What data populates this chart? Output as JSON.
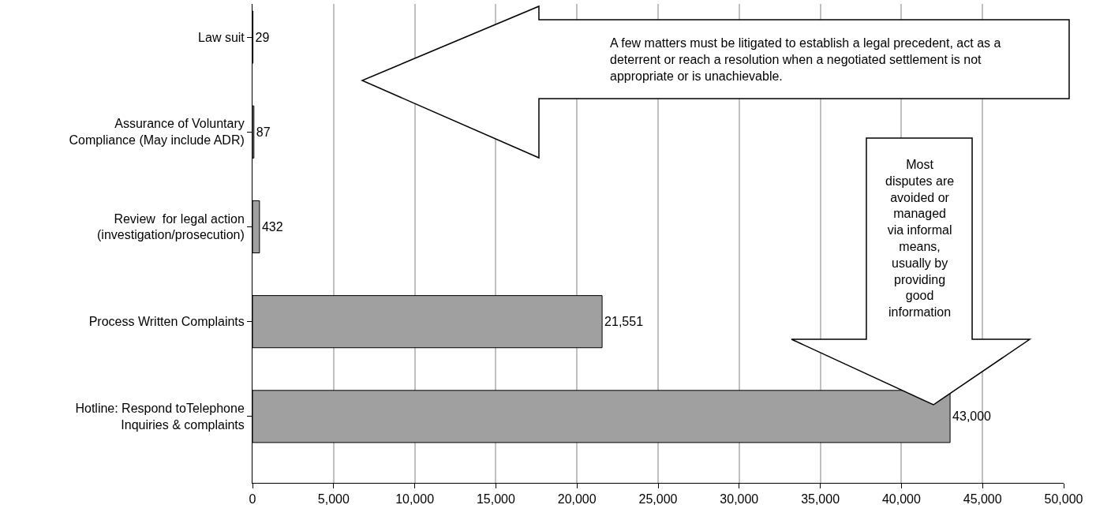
{
  "chart_data": {
    "type": "bar",
    "orientation": "horizontal",
    "categories": [
      "Law suit",
      "Assurance of Voluntary\nCompliance (May include ADR)",
      "Review  for legal action\n(investigation/prosecution)",
      "Process Written Complaints",
      "Hotline: Respond toTelephone\nInquiries & complaints"
    ],
    "values": [
      29,
      87,
      432,
      21551,
      43000
    ],
    "value_labels": [
      "29",
      "87",
      "432",
      "21,551",
      "43,000"
    ],
    "color": "#a0a0a0",
    "xlim": [
      0,
      50000
    ],
    "xticks": [
      {
        "value": 0,
        "label": "0"
      },
      {
        "value": 5000,
        "label": "5,000"
      },
      {
        "value": 10000,
        "label": "10,000"
      },
      {
        "value": 15000,
        "label": "15,000"
      },
      {
        "value": 20000,
        "label": "20,000"
      },
      {
        "value": 25000,
        "label": "25,000"
      },
      {
        "value": 30000,
        "label": "30,000"
      },
      {
        "value": 35000,
        "label": "35,000"
      },
      {
        "value": 40000,
        "label": "40,000"
      },
      {
        "value": 45000,
        "label": "45,000"
      },
      {
        "value": 50000,
        "label": "50,000"
      }
    ],
    "grid": "x",
    "annotations": [
      "A few matters must be litigated to establish a legal precedent, act as a\ndeterrent or reach a resolution when a negotiated settlement is not\nappropriate or is unachievable.",
      "Most\ndisputes are\navoided or\nmanaged\nvia informal\nmeans,\nusually by\nproviding\ngood\ninformation"
    ]
  }
}
